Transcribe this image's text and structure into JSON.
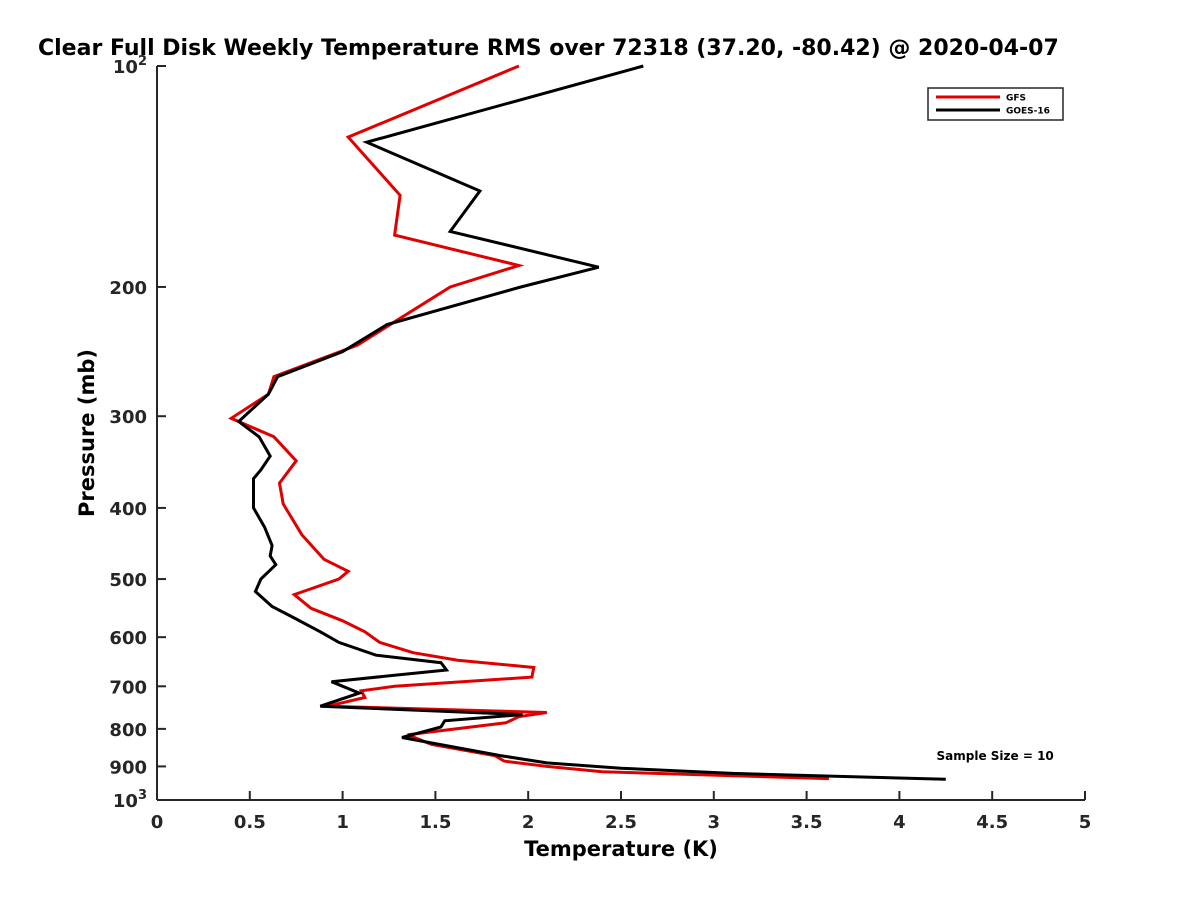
{
  "chart_data": {
    "type": "line",
    "title": "Clear Full Disk Weekly Temperature RMS over 72318 (37.20, -80.42) @ 2020-04-07",
    "xlabel": "Temperature (K)",
    "ylabel": "Pressure (mb)",
    "xlim": [
      0,
      5
    ],
    "ylim": [
      100,
      1000
    ],
    "y_scale": "log",
    "y_reversed": true,
    "grid": false,
    "legend_position": "top-right",
    "x_ticks": [
      {
        "value": 0,
        "label": "0"
      },
      {
        "value": 0.5,
        "label": "0.5"
      },
      {
        "value": 1,
        "label": "1"
      },
      {
        "value": 1.5,
        "label": "1.5"
      },
      {
        "value": 2,
        "label": "2"
      },
      {
        "value": 2.5,
        "label": "2.5"
      },
      {
        "value": 3,
        "label": "3"
      },
      {
        "value": 3.5,
        "label": "3.5"
      },
      {
        "value": 4,
        "label": "4"
      },
      {
        "value": 4.5,
        "label": "4.5"
      },
      {
        "value": 5,
        "label": "5"
      }
    ],
    "y_ticks": [
      {
        "value": 100,
        "base": "10",
        "exp": "2"
      },
      {
        "value": 200,
        "label": "200"
      },
      {
        "value": 300,
        "label": "300"
      },
      {
        "value": 400,
        "label": "400"
      },
      {
        "value": 500,
        "label": "500"
      },
      {
        "value": 600,
        "label": "600"
      },
      {
        "value": 700,
        "label": "700"
      },
      {
        "value": 800,
        "label": "800"
      },
      {
        "value": 900,
        "label": "900"
      },
      {
        "value": 1000,
        "base": "10",
        "exp": "3"
      }
    ],
    "series": [
      {
        "name": "GFS",
        "color": "#e00000",
        "points": [
          [
            1.95,
            100
          ],
          [
            1.03,
            125
          ],
          [
            1.31,
            150
          ],
          [
            1.28,
            170
          ],
          [
            1.95,
            187
          ],
          [
            1.58,
            200
          ],
          [
            1.08,
            240
          ],
          [
            0.63,
            265
          ],
          [
            0.6,
            280
          ],
          [
            0.4,
            302
          ],
          [
            0.63,
            320
          ],
          [
            0.75,
            345
          ],
          [
            0.66,
            370
          ],
          [
            0.68,
            395
          ],
          [
            0.78,
            435
          ],
          [
            0.9,
            470
          ],
          [
            1.03,
            488
          ],
          [
            0.98,
            500
          ],
          [
            0.74,
            525
          ],
          [
            0.83,
            548
          ],
          [
            1.0,
            570
          ],
          [
            1.12,
            590
          ],
          [
            1.2,
            610
          ],
          [
            1.38,
            630
          ],
          [
            1.62,
            645
          ],
          [
            2.03,
            660
          ],
          [
            2.02,
            680
          ],
          [
            1.28,
            700
          ],
          [
            1.1,
            710
          ],
          [
            1.12,
            725
          ],
          [
            0.92,
            745
          ],
          [
            2.1,
            760
          ],
          [
            1.95,
            770
          ],
          [
            1.88,
            785
          ],
          [
            1.35,
            815
          ],
          [
            1.48,
            840
          ],
          [
            1.82,
            870
          ],
          [
            1.87,
            885
          ],
          [
            2.1,
            900
          ],
          [
            2.4,
            915
          ],
          [
            3.62,
            935
          ]
        ]
      },
      {
        "name": "GOES-16",
        "color": "#000000",
        "points": [
          [
            2.62,
            100
          ],
          [
            1.13,
            127
          ],
          [
            1.74,
            148
          ],
          [
            1.58,
            168
          ],
          [
            2.38,
            188
          ],
          [
            1.96,
            200
          ],
          [
            1.24,
            225
          ],
          [
            1.0,
            245
          ],
          [
            0.65,
            265
          ],
          [
            0.6,
            280
          ],
          [
            0.44,
            305
          ],
          [
            0.55,
            320
          ],
          [
            0.61,
            340
          ],
          [
            0.56,
            355
          ],
          [
            0.52,
            365
          ],
          [
            0.52,
            400
          ],
          [
            0.58,
            425
          ],
          [
            0.62,
            450
          ],
          [
            0.61,
            465
          ],
          [
            0.64,
            478
          ],
          [
            0.56,
            500
          ],
          [
            0.53,
            520
          ],
          [
            0.62,
            545
          ],
          [
            0.74,
            565
          ],
          [
            0.88,
            590
          ],
          [
            0.98,
            610
          ],
          [
            1.18,
            635
          ],
          [
            1.53,
            650
          ],
          [
            1.56,
            665
          ],
          [
            0.94,
            690
          ],
          [
            1.09,
            715
          ],
          [
            0.88,
            745
          ],
          [
            1.97,
            765
          ],
          [
            1.55,
            780
          ],
          [
            1.53,
            795
          ],
          [
            1.32,
            822
          ],
          [
            1.85,
            870
          ],
          [
            2.1,
            890
          ],
          [
            2.5,
            905
          ],
          [
            3.1,
            920
          ],
          [
            4.25,
            937
          ]
        ]
      }
    ],
    "annotations": [
      {
        "text": "Sample Size = 10",
        "x": 4.2,
        "y": 910
      }
    ]
  }
}
